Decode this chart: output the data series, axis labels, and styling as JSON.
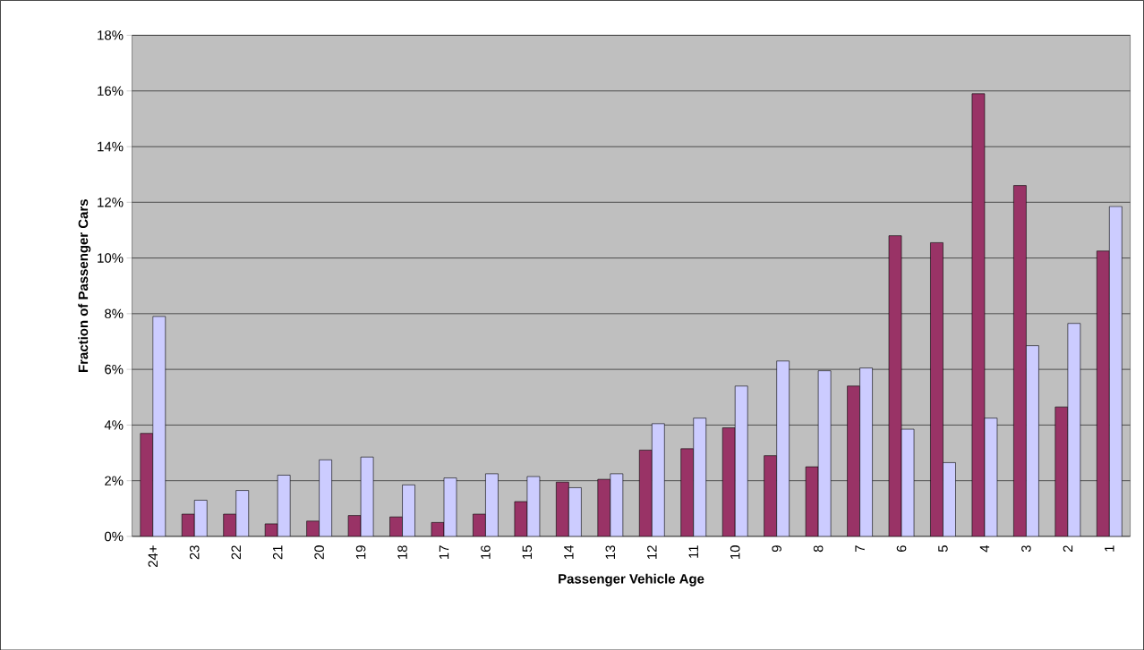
{
  "chart_data": {
    "type": "bar",
    "xlabel": "Passenger Vehicle Age",
    "ylabel": "Fraction of Passenger Cars",
    "categories": [
      "24+",
      "23",
      "22",
      "21",
      "20",
      "19",
      "18",
      "17",
      "16",
      "15",
      "14",
      "13",
      "12",
      "11",
      "10",
      "9",
      "8",
      "7",
      "6",
      "5",
      "4",
      "3",
      "2",
      "1"
    ],
    "series": [
      {
        "color": "#993366",
        "values": [
          3.7,
          0.8,
          0.8,
          0.45,
          0.55,
          0.75,
          0.7,
          0.5,
          0.8,
          1.25,
          1.95,
          2.05,
          3.1,
          3.15,
          3.9,
          2.9,
          2.5,
          5.4,
          10.8,
          10.55,
          15.9,
          12.6,
          4.65,
          10.25
        ]
      },
      {
        "color": "#ccccff",
        "values": [
          7.9,
          1.3,
          1.65,
          2.2,
          2.75,
          2.85,
          1.85,
          2.1,
          2.25,
          2.15,
          1.75,
          2.25,
          4.05,
          4.25,
          5.4,
          6.3,
          5.95,
          6.05,
          3.85,
          2.65,
          4.25,
          6.85,
          7.65,
          11.85
        ]
      }
    ],
    "ylim": [
      0,
      18
    ],
    "yticks": [
      {
        "value": 0,
        "label": "0%"
      },
      {
        "value": 2,
        "label": "2%"
      },
      {
        "value": 4,
        "label": "4%"
      },
      {
        "value": 6,
        "label": "6%"
      },
      {
        "value": 8,
        "label": "8%"
      },
      {
        "value": 10,
        "label": "10%"
      },
      {
        "value": 12,
        "label": "12%"
      },
      {
        "value": 14,
        "label": "14%"
      },
      {
        "value": 16,
        "label": "16%"
      },
      {
        "value": 18,
        "label": "18%"
      }
    ],
    "grid": "y"
  }
}
